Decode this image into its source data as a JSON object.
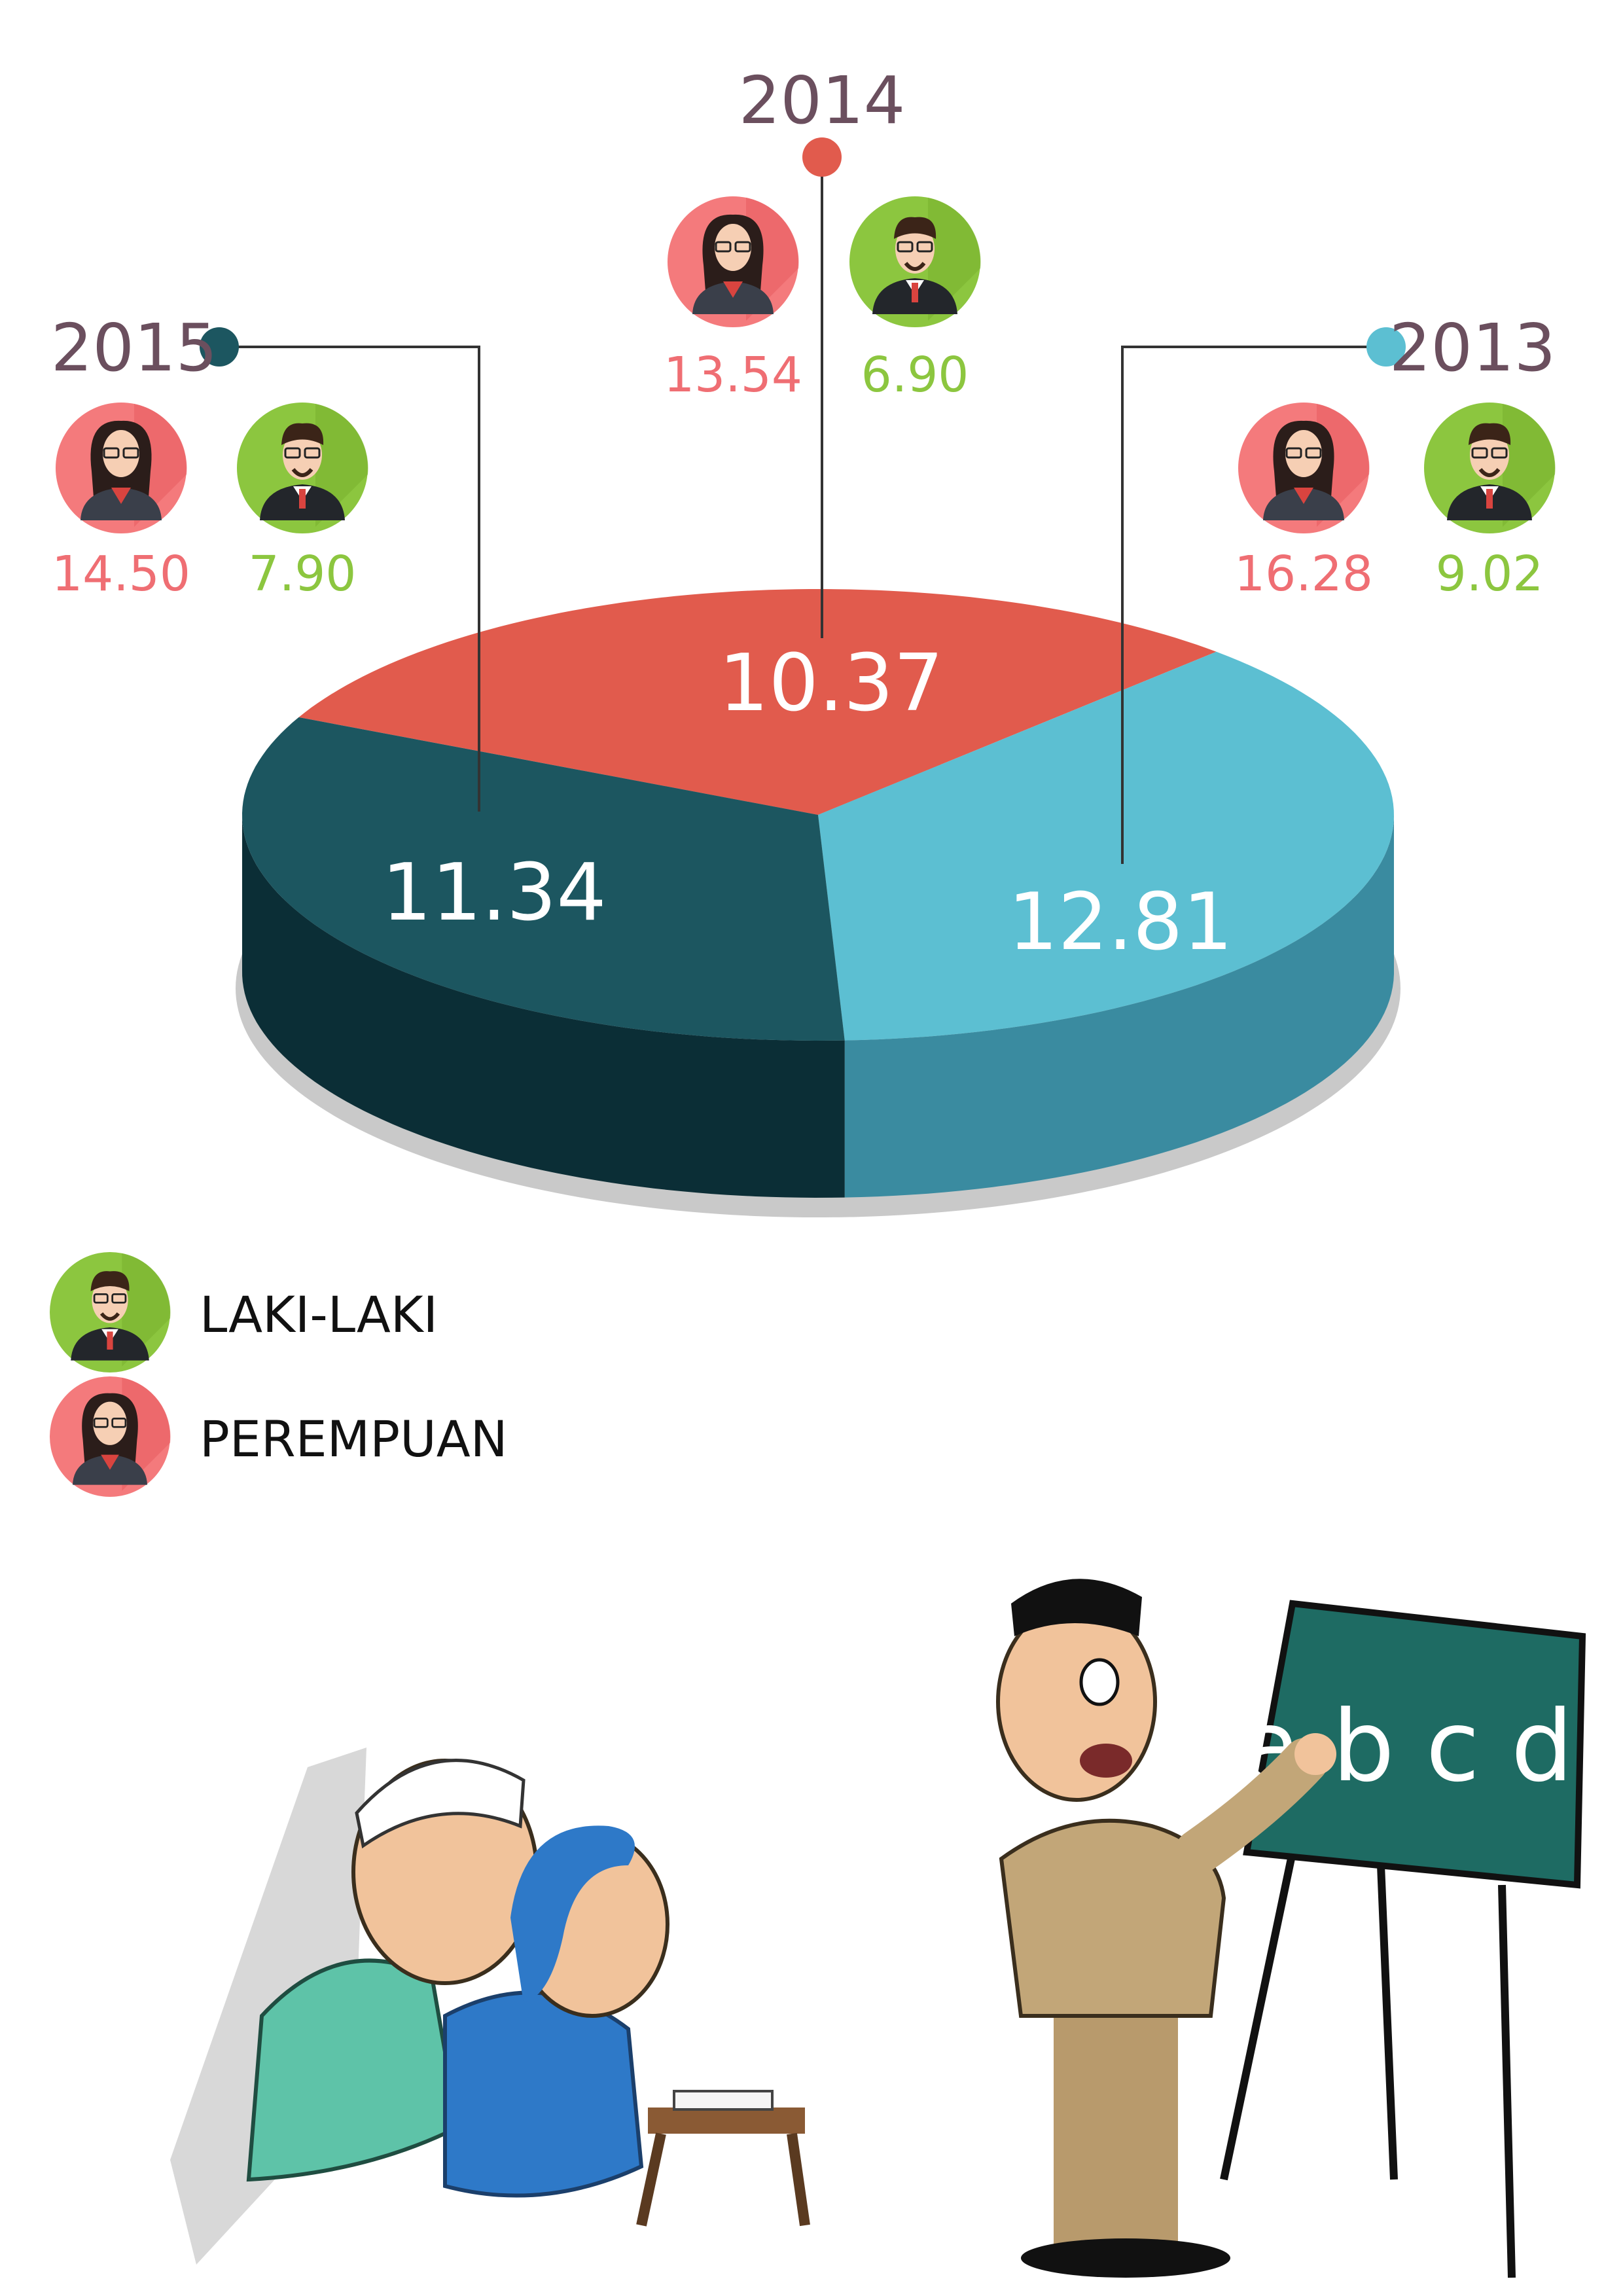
{
  "chart_data": {
    "type": "pie",
    "title": "",
    "slices": [
      {
        "label": "2014",
        "value": 10.37,
        "color": "#e15b4d",
        "side_color": "#b84438"
      },
      {
        "label": "2013",
        "value": 12.81,
        "color": "#5cbfd2",
        "side_color": "#3a8ba0"
      },
      {
        "label": "2015",
        "value": 11.34,
        "color": "#1c5660",
        "side_color": "#0b2e36"
      }
    ],
    "breakdown": [
      {
        "year": "2014",
        "perempuan": "13.54",
        "laki_laki": "6.90",
        "dot_color": "#e15b4d"
      },
      {
        "year": "2015",
        "perempuan": "14.50",
        "laki_laki": "7.90",
        "dot_color": "#1c5660"
      },
      {
        "year": "2013",
        "perempuan": "16.28",
        "laki_laki": "9.02",
        "dot_color": "#5cbfd2"
      }
    ],
    "legend": [
      {
        "label": "LAKI-LAKI",
        "icon": "man-avatar-icon",
        "color": "#8cc63f"
      },
      {
        "label": "PEREMPUAN",
        "icon": "woman-avatar-icon",
        "color": "#f47a7c"
      }
    ],
    "colors": {
      "perempuan_text": "#ef6e73",
      "laki_text": "#8cc63f",
      "year_text": "#6b4f5e"
    }
  },
  "illustration": {
    "blackboard_text": "a b c d",
    "scene": "teacher-teaching-adults-icon"
  }
}
